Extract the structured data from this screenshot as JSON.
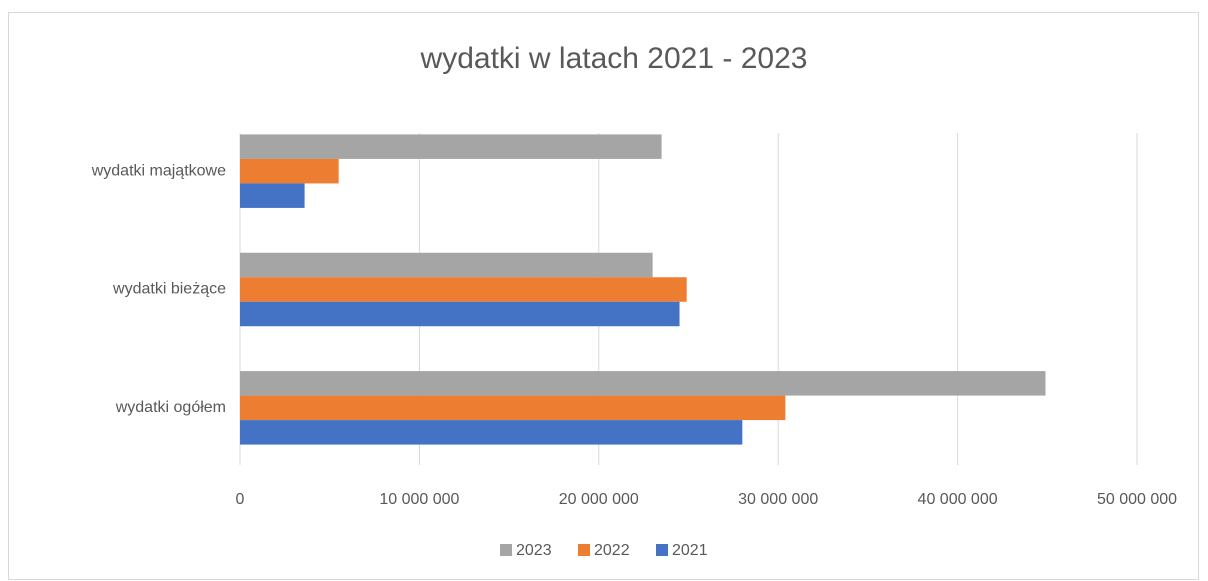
{
  "chart_data": {
    "type": "bar",
    "orientation": "horizontal",
    "title": "wydatki w latach 2021 - 2023",
    "categories": [
      "wydatki majątkowe",
      "wydatki bieżące",
      "wydatki ogółem"
    ],
    "series": [
      {
        "name": "2023",
        "color": "#a5a5a5",
        "values": [
          23500000,
          23000000,
          44900000
        ]
      },
      {
        "name": "2022",
        "color": "#ed7d31",
        "values": [
          5500000,
          24900000,
          30400000
        ]
      },
      {
        "name": "2021",
        "color": "#4472c4",
        "values": [
          3600000,
          24500000,
          28000000
        ]
      }
    ],
    "xlim": [
      0,
      50000000
    ],
    "xticks": [
      0,
      {
        "value": 10000000,
        "label": "10 000 000"
      },
      {
        "value": 20000000,
        "label": "20 000 000"
      },
      {
        "value": 30000000,
        "label": "30 000 000"
      },
      {
        "value": 40000000,
        "label": "40 000 000"
      },
      {
        "value": 50000000,
        "label": "50 000 000"
      }
    ],
    "grid": true,
    "legend": "bottom"
  }
}
